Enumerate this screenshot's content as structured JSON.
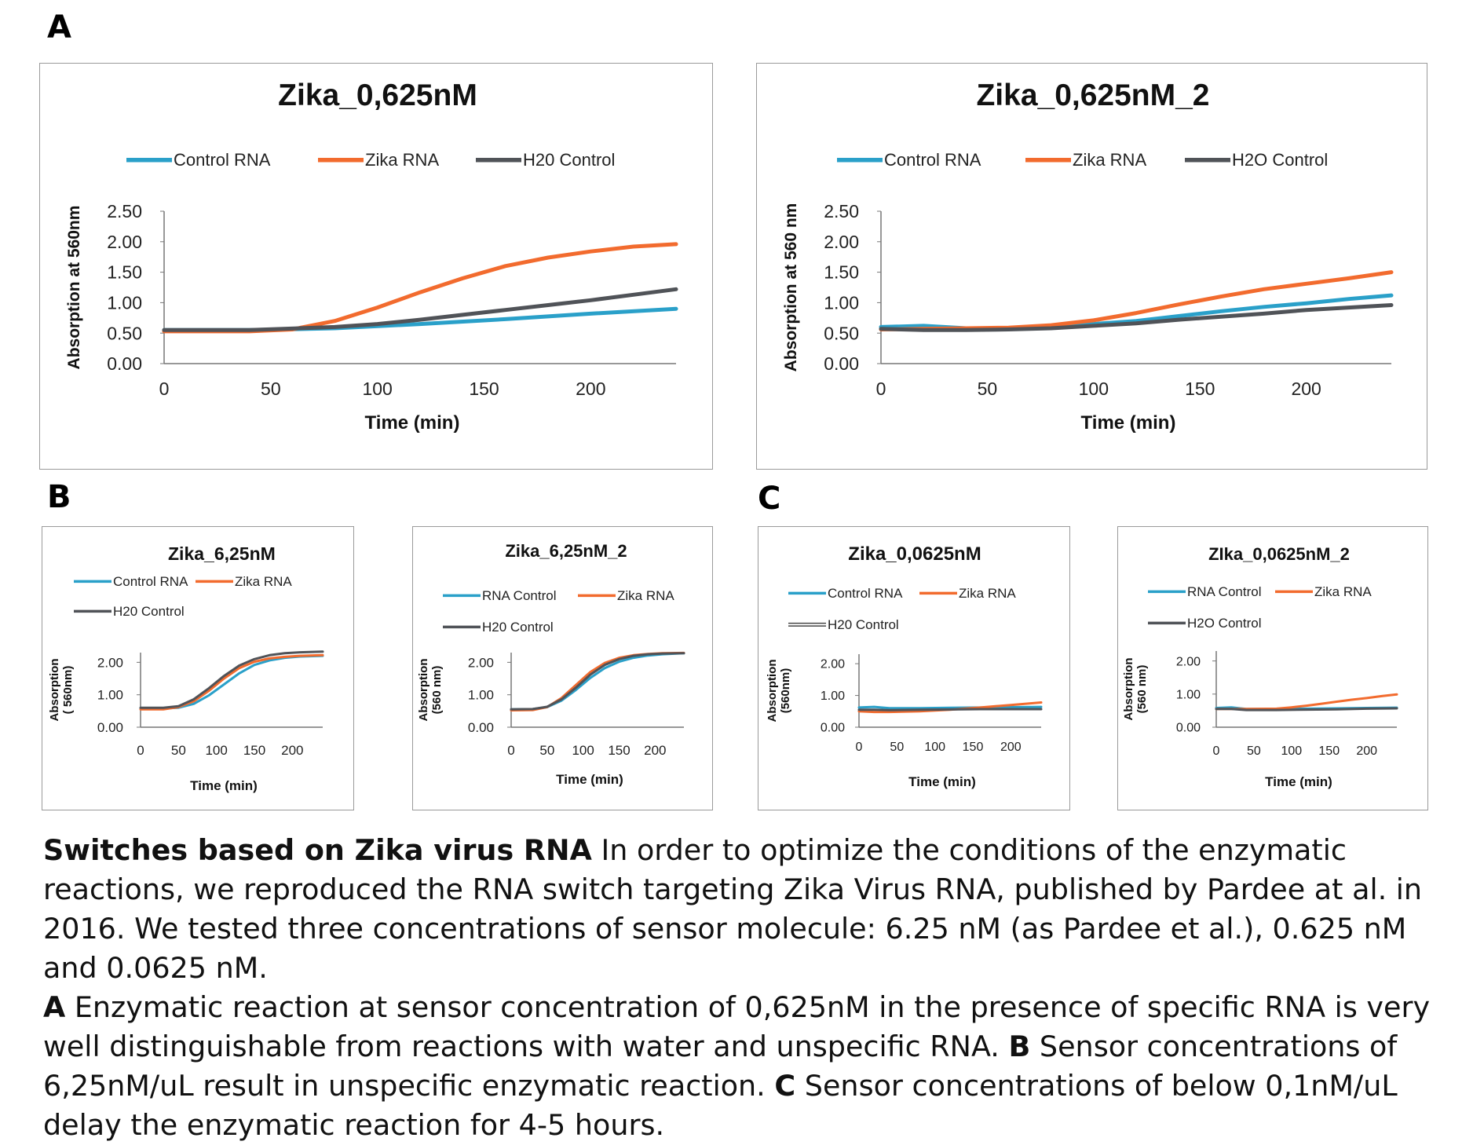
{
  "panel_labels": {
    "A": "A",
    "B": "B",
    "C": "C"
  },
  "colors": {
    "control": "#2aa0c9",
    "zika": "#f26b2e",
    "h2o": "#505358",
    "axis": "#777777"
  },
  "chart_data": [
    {
      "id": "a1",
      "type": "line",
      "title": "Zika_0,625nM",
      "xlabel": "Time (min)",
      "ylabel": "Absorption at 560nm",
      "xticks": [
        "0",
        "50",
        "100",
        "150",
        "200"
      ],
      "yticks": [
        "0.00",
        "0.50",
        "1.00",
        "1.50",
        "2.00",
        "2.50"
      ],
      "xlim": [
        0,
        240
      ],
      "ylim": [
        0,
        2.5
      ],
      "legend": "top",
      "series": [
        {
          "name": "Control RNA",
          "key": "control",
          "x": [
            0,
            40,
            80,
            120,
            160,
            200,
            240
          ],
          "values": [
            0.55,
            0.55,
            0.58,
            0.65,
            0.73,
            0.82,
            0.9
          ]
        },
        {
          "name": "Zika RNA",
          "key": "zika",
          "x": [
            0,
            40,
            60,
            80,
            100,
            120,
            140,
            160,
            180,
            200,
            220,
            240
          ],
          "values": [
            0.53,
            0.53,
            0.56,
            0.7,
            0.92,
            1.17,
            1.4,
            1.6,
            1.74,
            1.84,
            1.92,
            1.96
          ]
        },
        {
          "name": "H20 Control",
          "key": "h2o",
          "x": [
            0,
            40,
            80,
            100,
            120,
            140,
            160,
            180,
            200,
            220,
            240
          ],
          "values": [
            0.55,
            0.55,
            0.6,
            0.65,
            0.72,
            0.8,
            0.88,
            0.96,
            1.04,
            1.13,
            1.22
          ]
        }
      ]
    },
    {
      "id": "a2",
      "type": "line",
      "title": "Zika_0,625nM_2",
      "xlabel": "Time (min)",
      "ylabel": "Absorption at 560 nm",
      "xticks": [
        "0",
        "50",
        "100",
        "150",
        "200"
      ],
      "yticks": [
        "0.00",
        "0.50",
        "1.00",
        "1.50",
        "2.00",
        "2.50"
      ],
      "xlim": [
        0,
        240
      ],
      "ylim": [
        0,
        2.5
      ],
      "legend": "top",
      "series": [
        {
          "name": "Control RNA",
          "key": "control",
          "x": [
            0,
            20,
            40,
            60,
            80,
            100,
            120,
            140,
            160,
            180,
            200,
            220,
            240
          ],
          "values": [
            0.6,
            0.62,
            0.58,
            0.58,
            0.62,
            0.65,
            0.7,
            0.78,
            0.86,
            0.93,
            0.99,
            1.06,
            1.12
          ]
        },
        {
          "name": "Zika RNA",
          "key": "zika",
          "x": [
            0,
            20,
            40,
            60,
            80,
            100,
            120,
            140,
            160,
            180,
            200,
            220,
            240
          ],
          "values": [
            0.56,
            0.57,
            0.58,
            0.59,
            0.63,
            0.71,
            0.83,
            0.97,
            1.1,
            1.22,
            1.31,
            1.4,
            1.5
          ]
        },
        {
          "name": "H2O Control",
          "key": "h2o",
          "x": [
            0,
            20,
            40,
            60,
            80,
            100,
            120,
            140,
            160,
            180,
            200,
            220,
            240
          ],
          "values": [
            0.57,
            0.55,
            0.55,
            0.56,
            0.58,
            0.62,
            0.66,
            0.72,
            0.77,
            0.82,
            0.88,
            0.92,
            0.96
          ]
        }
      ]
    },
    {
      "id": "b1",
      "type": "line",
      "title": "Zika_6,25nM",
      "xlabel": "Time (min)",
      "ylabel": [
        "Absorption",
        "( 560nm)"
      ],
      "xticks": [
        "0",
        "50",
        "100",
        "150",
        "200"
      ],
      "yticks": [
        "0.00",
        "1.00",
        "2.00"
      ],
      "xlim": [
        0,
        240
      ],
      "ylim": [
        0,
        2.3
      ],
      "legend": "top",
      "series": [
        {
          "name": "Control RNA",
          "key": "control",
          "x": [
            0,
            30,
            50,
            70,
            90,
            110,
            130,
            150,
            170,
            190,
            210,
            240
          ],
          "values": [
            0.58,
            0.58,
            0.6,
            0.72,
            0.98,
            1.32,
            1.66,
            1.92,
            2.06,
            2.14,
            2.18,
            2.2
          ]
        },
        {
          "name": "Zika RNA",
          "key": "zika",
          "x": [
            0,
            30,
            50,
            70,
            90,
            110,
            130,
            150,
            170,
            190,
            210,
            240
          ],
          "values": [
            0.55,
            0.55,
            0.62,
            0.8,
            1.12,
            1.5,
            1.82,
            2.02,
            2.12,
            2.17,
            2.2,
            2.22
          ]
        },
        {
          "name": "H20 Control",
          "key": "h2o",
          "x": [
            0,
            30,
            50,
            70,
            90,
            110,
            130,
            150,
            170,
            190,
            210,
            240
          ],
          "values": [
            0.6,
            0.6,
            0.65,
            0.86,
            1.2,
            1.58,
            1.9,
            2.1,
            2.22,
            2.28,
            2.31,
            2.33
          ]
        }
      ]
    },
    {
      "id": "b2",
      "type": "line",
      "title": "Zika_6,25nM_2",
      "xlabel": "Time (min)",
      "ylabel": [
        "Absorption",
        "(560 nm)"
      ],
      "xticks": [
        "0",
        "50",
        "100",
        "150",
        "200"
      ],
      "yticks": [
        "0.00",
        "1.00",
        "2.00"
      ],
      "xlim": [
        0,
        240
      ],
      "ylim": [
        0,
        2.3
      ],
      "legend": "top",
      "series": [
        {
          "name": "RNA Control",
          "key": "control",
          "x": [
            0,
            30,
            50,
            70,
            90,
            110,
            130,
            150,
            170,
            190,
            210,
            240
          ],
          "values": [
            0.55,
            0.56,
            0.62,
            0.82,
            1.15,
            1.52,
            1.82,
            2.02,
            2.14,
            2.21,
            2.25,
            2.28
          ]
        },
        {
          "name": "Zika RNA",
          "key": "zika",
          "x": [
            0,
            30,
            50,
            70,
            90,
            110,
            130,
            150,
            170,
            190,
            210,
            240
          ],
          "values": [
            0.52,
            0.53,
            0.62,
            0.9,
            1.3,
            1.7,
            1.98,
            2.14,
            2.22,
            2.26,
            2.28,
            2.29
          ]
        },
        {
          "name": "H20 Control",
          "key": "h2o",
          "x": [
            0,
            30,
            50,
            70,
            90,
            110,
            130,
            150,
            170,
            190,
            210,
            240
          ],
          "values": [
            0.55,
            0.56,
            0.63,
            0.86,
            1.22,
            1.62,
            1.92,
            2.1,
            2.2,
            2.25,
            2.27,
            2.28
          ]
        }
      ]
    },
    {
      "id": "c1",
      "type": "line",
      "title": "Zika_0,0625nM",
      "xlabel": "Time (min)",
      "ylabel": [
        "Absorption",
        "(560nm)"
      ],
      "xticks": [
        "0",
        "50",
        "100",
        "150",
        "200"
      ],
      "yticks": [
        "0.00",
        "1.00",
        "2.00"
      ],
      "xlim": [
        0,
        240
      ],
      "ylim": [
        0,
        2.3
      ],
      "legend": "top",
      "series": [
        {
          "name": "Control RNA",
          "key": "control",
          "x": [
            0,
            20,
            40,
            80,
            120,
            160,
            200,
            240
          ],
          "values": [
            0.62,
            0.64,
            0.6,
            0.6,
            0.61,
            0.62,
            0.63,
            0.64
          ]
        },
        {
          "name": "Zika RNA",
          "key": "zika",
          "x": [
            0,
            20,
            40,
            80,
            120,
            160,
            200,
            240
          ],
          "values": [
            0.5,
            0.48,
            0.48,
            0.5,
            0.55,
            0.62,
            0.7,
            0.78
          ]
        },
        {
          "name": "H20 Control",
          "key": "h2o",
          "x": [
            0,
            20,
            40,
            80,
            120,
            160,
            200,
            240
          ],
          "values": [
            0.55,
            0.55,
            0.54,
            0.55,
            0.56,
            0.57,
            0.57,
            0.57
          ]
        }
      ]
    },
    {
      "id": "c2",
      "type": "line",
      "title": "ZIka_0,0625nM_2",
      "xlabel": "Time (min)",
      "ylabel": [
        "Absorption",
        "(560 nm)"
      ],
      "xticks": [
        "0",
        "50",
        "100",
        "150",
        "200"
      ],
      "yticks": [
        "0.00",
        "1.00",
        "2.00"
      ],
      "xlim": [
        0,
        240
      ],
      "ylim": [
        0,
        2.3
      ],
      "legend": "top",
      "series": [
        {
          "name": "RNA Control",
          "key": "control",
          "x": [
            0,
            20,
            40,
            80,
            120,
            160,
            200,
            240
          ],
          "values": [
            0.58,
            0.6,
            0.55,
            0.55,
            0.56,
            0.57,
            0.58,
            0.59
          ]
        },
        {
          "name": "Zika RNA",
          "key": "zika",
          "x": [
            0,
            20,
            40,
            80,
            100,
            120,
            140,
            160,
            180,
            200,
            220,
            240
          ],
          "values": [
            0.55,
            0.55,
            0.55,
            0.56,
            0.6,
            0.65,
            0.71,
            0.77,
            0.83,
            0.88,
            0.94,
            0.99
          ]
        },
        {
          "name": "H2O Control",
          "key": "h2o",
          "x": [
            0,
            20,
            40,
            80,
            120,
            160,
            200,
            240
          ],
          "values": [
            0.55,
            0.55,
            0.52,
            0.52,
            0.53,
            0.54,
            0.56,
            0.57
          ]
        }
      ]
    }
  ],
  "caption": {
    "bold_title": "Switches based on Zika virus RNA",
    "p1": " In order to optimize the conditions of the enzymatic reactions, we reproduced the RNA switch targeting Zika Virus RNA, published by Pardee at al. in 2016. We tested three concentrations of sensor molecule: 6.25 nM (as Pardee et al.), 0.625 nM and 0.0625 nM.",
    "a_label": "A",
    "a_text": " Enzymatic reaction at sensor concentration of 0,625nM in the presence of specific RNA is very well distinguishable from reactions with water and unspecific RNA. ",
    "b_label": "B",
    "b_text": " Sensor concentrations of 6,25nM/uL result in unspecific enzymatic reaction. ",
    "c_label": "C",
    "c_text": " Sensor concentrations of below 0,1nM/uL delay the enzymatic reaction for 4-5 hours."
  }
}
